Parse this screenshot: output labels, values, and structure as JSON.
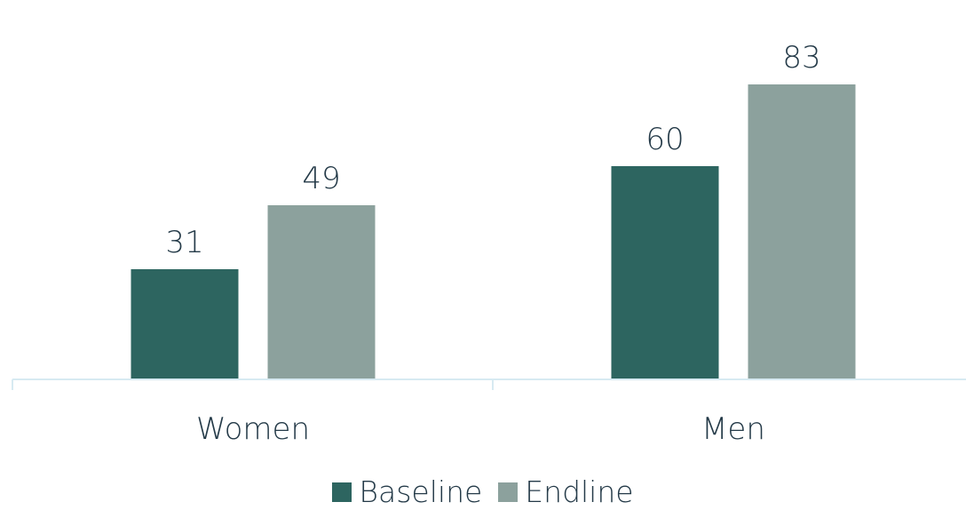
{
  "chart_data": {
    "type": "bar",
    "title": "",
    "xlabel": "",
    "ylabel": "",
    "categories": [
      "Women",
      "Men"
    ],
    "series": [
      {
        "name": "Baseline",
        "values": [
          31,
          60
        ],
        "color": "#2d6560"
      },
      {
        "name": "Endline",
        "values": [
          49,
          83
        ],
        "color": "#8ca19d"
      }
    ],
    "ylim": [
      0,
      100
    ],
    "grid": false,
    "legend_position": "bottom",
    "data_labels": true,
    "axis_color": "#d7eaf2"
  }
}
